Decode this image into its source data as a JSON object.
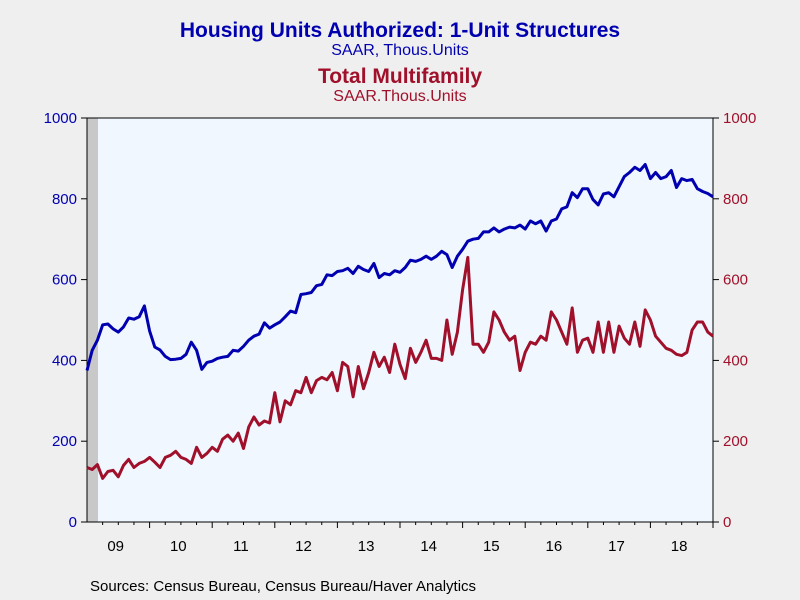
{
  "chart_data": {
    "type": "line",
    "title": "Housing Units Authorized: 1-Unit Structures",
    "subtitle": "SAAR, Thous.Units",
    "title2": "Total Multifamily",
    "subtitle2": "SAAR.Thous.Units",
    "source": "Sources:  Census Bureau, Census Bureau/Haver Analytics",
    "x_tick_labels": [
      "09",
      "10",
      "11",
      "12",
      "13",
      "14",
      "15",
      "16",
      "17",
      "18"
    ],
    "y_left": {
      "min": 0,
      "max": 1000,
      "ticks": [
        "0",
        "200",
        "400",
        "600",
        "800",
        "1000"
      ]
    },
    "y_right": {
      "min": 0,
      "max": 1000,
      "ticks": [
        "0",
        "200",
        "400",
        "600",
        "800",
        "1000"
      ]
    },
    "recession_shade": {
      "start_index": 0,
      "end_index": 1
    },
    "colors": {
      "series1": "#0000b0",
      "series2": "#a0102a",
      "plot_bg": "#f0f7ff",
      "shade": "#c8c8c8",
      "axis_left": "#0000b0",
      "axis_right": "#a0102a"
    },
    "start": "2009-01",
    "series": [
      {
        "name": "Housing Units Authorized: 1-Unit Structures",
        "axis": "left",
        "values": [
          375,
          425,
          450,
          488,
          490,
          478,
          470,
          483,
          505,
          502,
          508,
          535,
          473,
          433,
          426,
          410,
          402,
          403,
          405,
          415,
          445,
          425,
          378,
          395,
          398,
          405,
          408,
          410,
          425,
          423,
          435,
          450,
          460,
          465,
          493,
          480,
          488,
          495,
          508,
          522,
          518,
          563,
          565,
          568,
          585,
          588,
          612,
          610,
          620,
          622,
          628,
          615,
          633,
          625,
          620,
          640,
          605,
          615,
          612,
          622,
          618,
          630,
          648,
          645,
          650,
          658,
          650,
          658,
          670,
          662,
          630,
          658,
          675,
          695,
          700,
          702,
          718,
          718,
          728,
          718,
          725,
          730,
          728,
          735,
          725,
          745,
          738,
          745,
          720,
          745,
          750,
          775,
          780,
          815,
          803,
          825,
          825,
          798,
          785,
          812,
          815,
          805,
          830,
          855,
          865,
          878,
          870,
          885,
          850,
          865,
          850,
          855,
          870,
          828,
          850,
          845,
          848,
          825,
          818,
          813,
          805
        ],
        "color": "#0000b0"
      },
      {
        "name": "Total Multifamily",
        "axis": "right",
        "values": [
          135,
          130,
          142,
          108,
          125,
          128,
          112,
          140,
          155,
          135,
          145,
          150,
          160,
          148,
          135,
          160,
          165,
          175,
          160,
          155,
          145,
          185,
          160,
          170,
          185,
          175,
          205,
          215,
          200,
          220,
          182,
          235,
          260,
          240,
          250,
          245,
          320,
          248,
          300,
          290,
          325,
          320,
          358,
          320,
          350,
          358,
          352,
          370,
          325,
          395,
          385,
          310,
          385,
          330,
          370,
          420,
          385,
          408,
          370,
          440,
          390,
          355,
          430,
          395,
          420,
          450,
          405,
          405,
          400,
          500,
          415,
          470,
          575,
          655,
          440,
          440,
          420,
          445,
          520,
          500,
          470,
          450,
          460,
          375,
          420,
          445,
          440,
          460,
          450,
          520,
          500,
          470,
          440,
          530,
          420,
          450,
          455,
          420,
          495,
          420,
          495,
          420,
          485,
          455,
          440,
          495,
          435,
          525,
          500,
          460,
          445,
          430,
          425,
          415,
          412,
          420,
          475,
          495,
          495,
          470,
          460
        ],
        "color": "#a0102a"
      }
    ]
  }
}
